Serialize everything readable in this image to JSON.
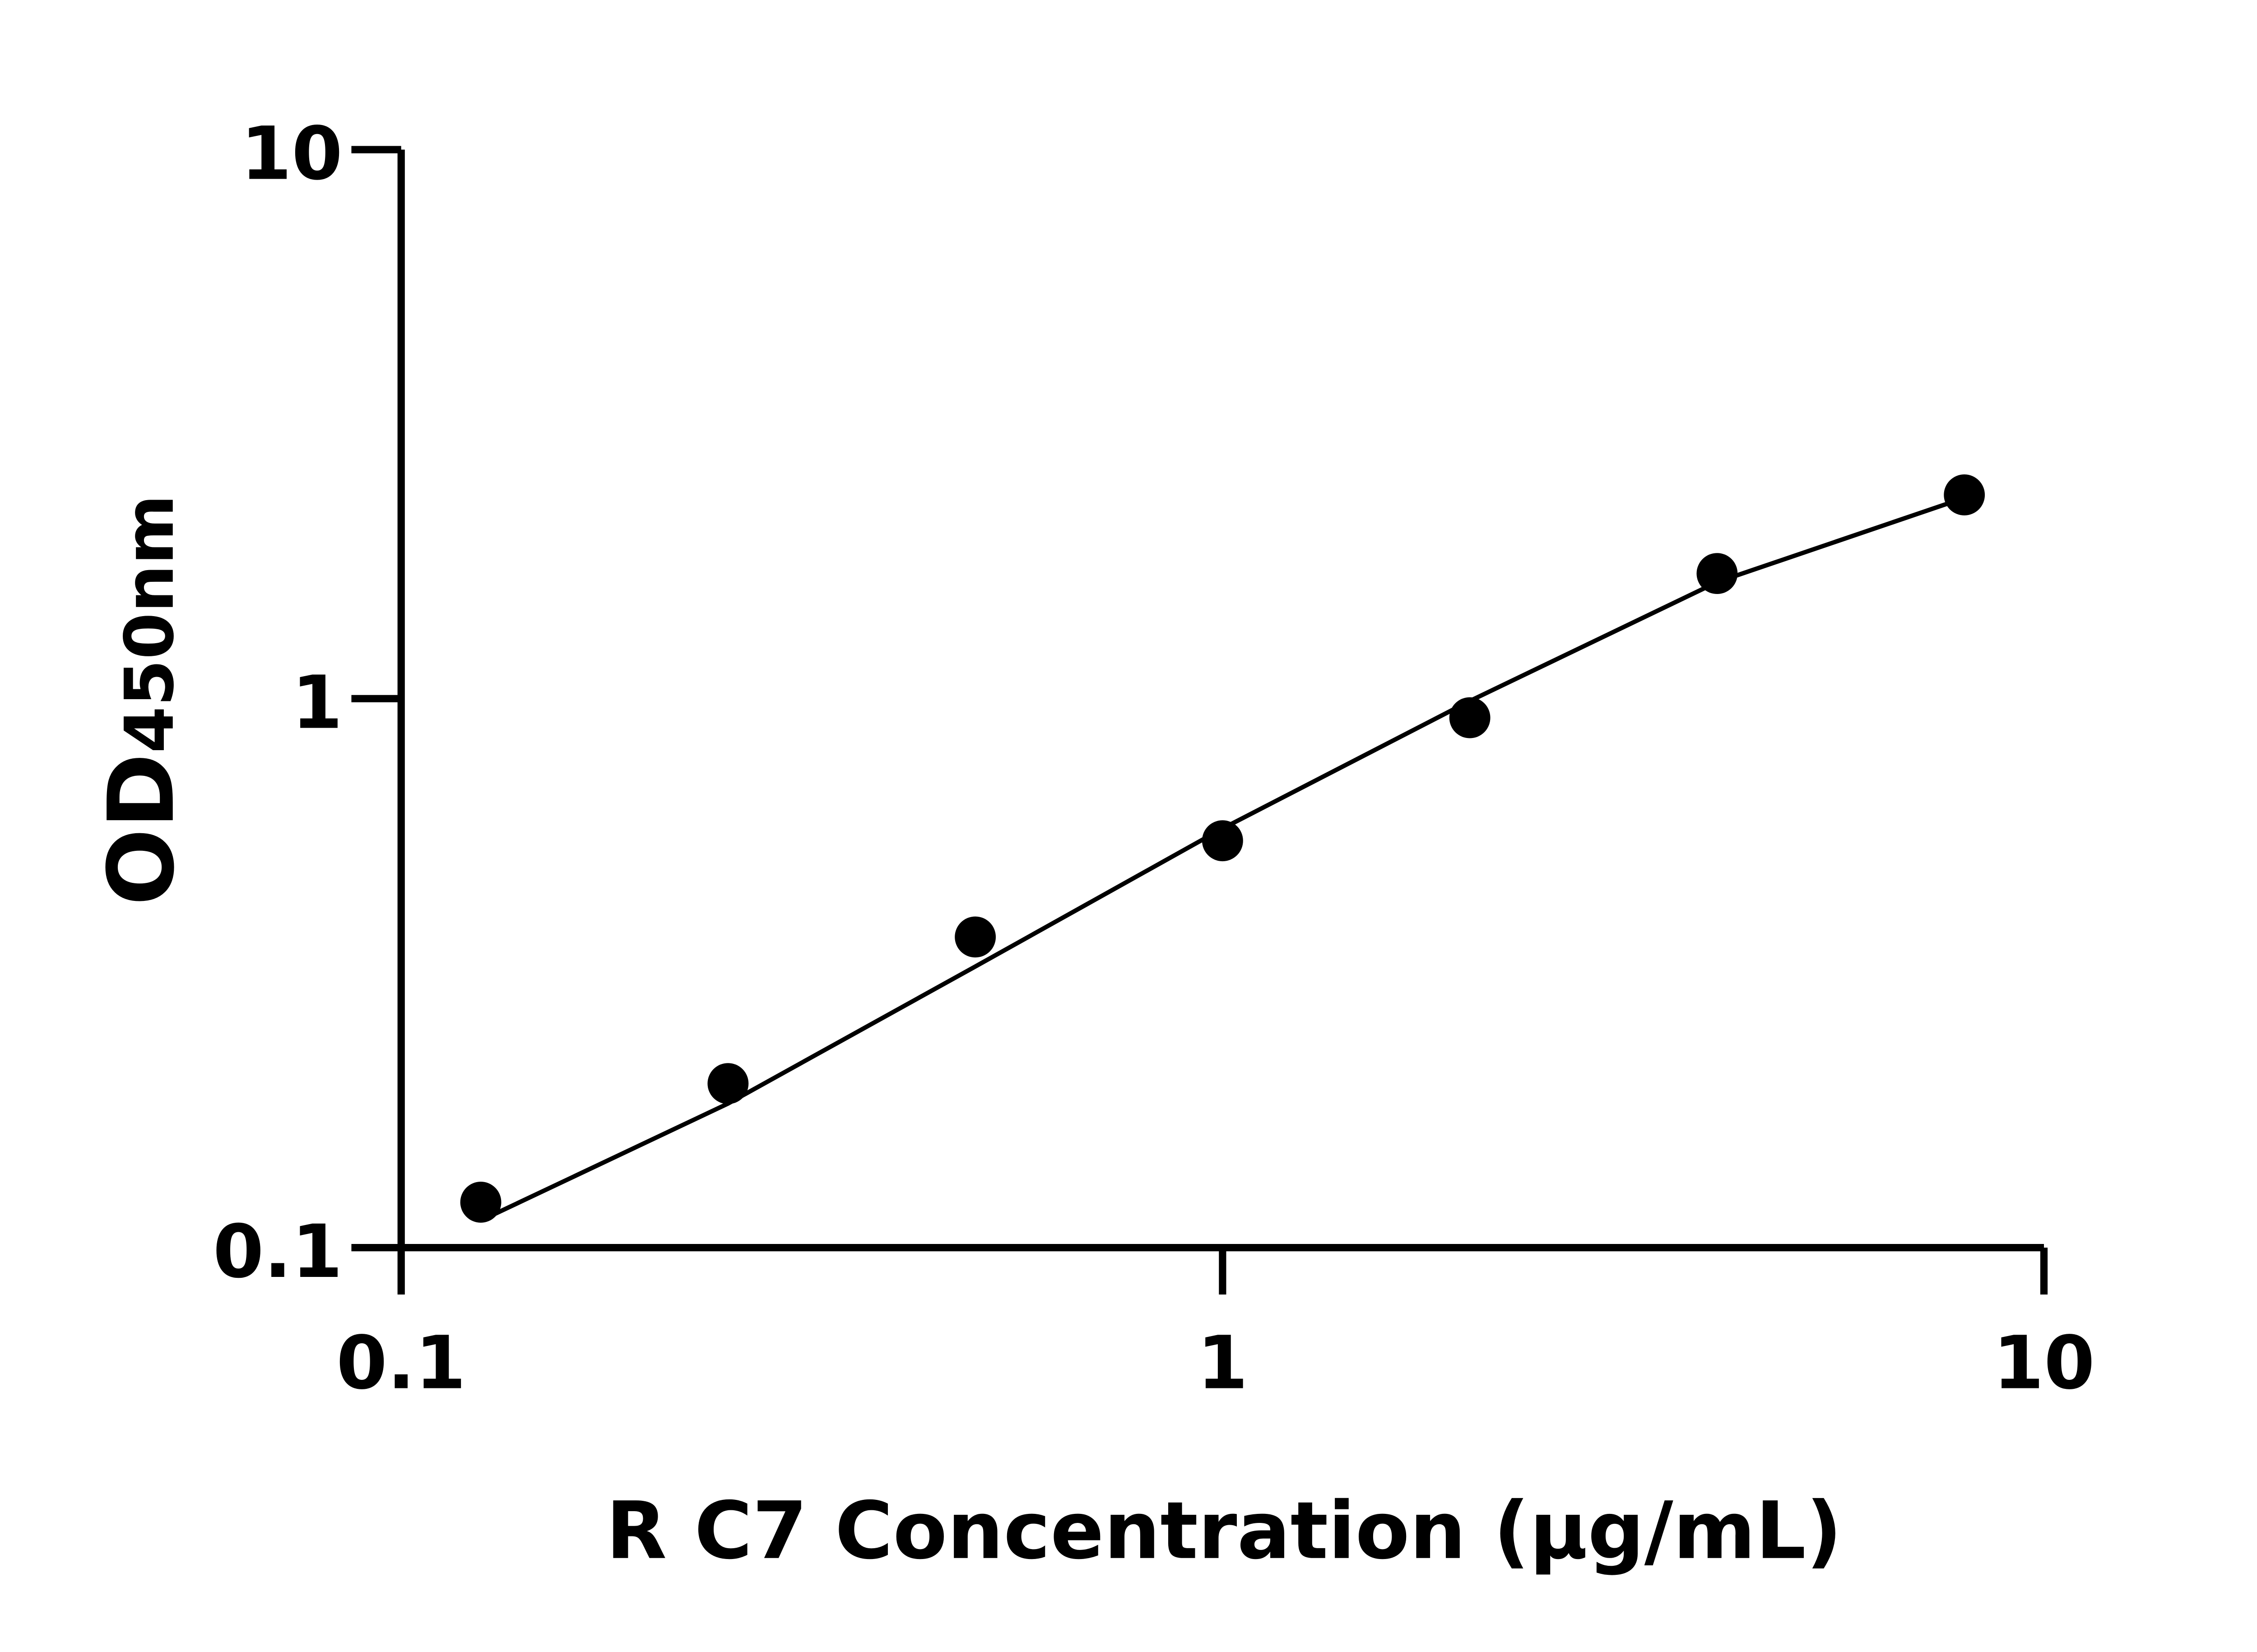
{
  "chart_data": {
    "type": "scatter",
    "title": "",
    "xlabel": "R C7 Concentration (μg/mL)",
    "ylabel_main": "OD",
    "ylabel_sub": "450nm",
    "xscale": "log",
    "yscale": "log",
    "xlim": [
      0.1,
      10
    ],
    "ylim": [
      0.1,
      10
    ],
    "xticks": [
      "0.1",
      "1",
      "10"
    ],
    "yticks": [
      "0.1",
      "1",
      "10"
    ],
    "grid": false,
    "legend": "none",
    "series": [
      {
        "type": "scatter",
        "x": [
          0.125,
          0.25,
          0.5,
          1,
          2,
          4,
          8
        ],
        "y": [
          0.121,
          0.199,
          0.368,
          0.551,
          0.923,
          1.69,
          2.35
        ]
      },
      {
        "type": "line",
        "x": [
          0.125,
          0.25,
          0.5,
          1,
          2,
          4,
          8
        ],
        "y": [
          0.112,
          0.183,
          0.325,
          0.58,
          0.99,
          1.63,
          2.32
        ]
      }
    ],
    "colors": {
      "marks": "#000000"
    }
  }
}
